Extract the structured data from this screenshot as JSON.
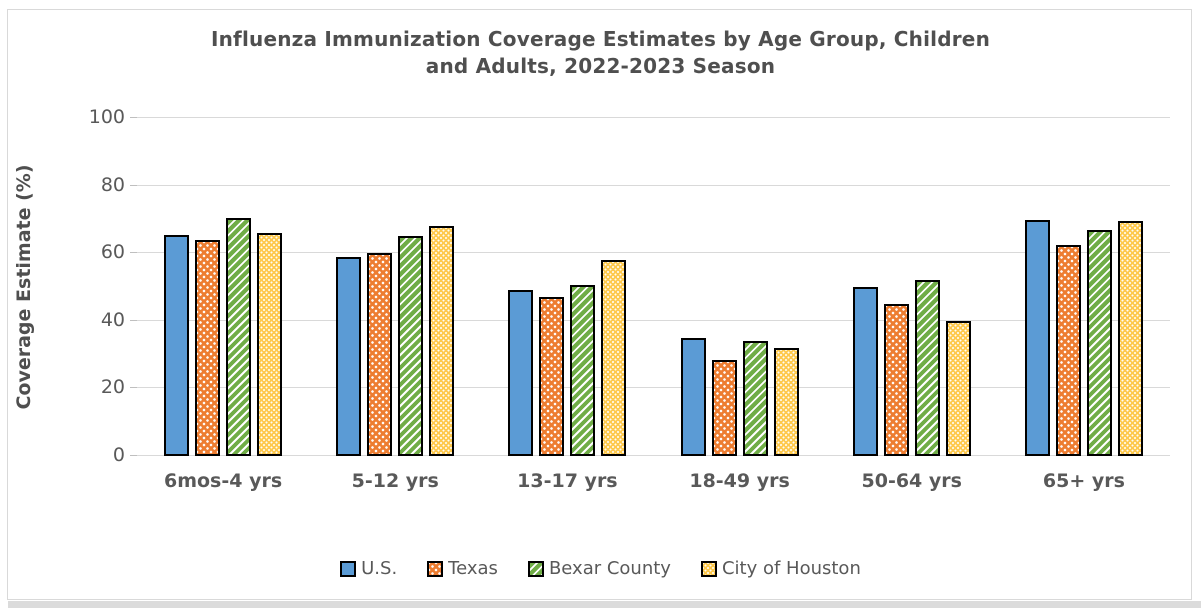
{
  "title": {
    "line1": "Influenza Immunization Coverage Estimates by Age Group, Children",
    "line2": "and Adults, 2022-2023 Season"
  },
  "y_axis": {
    "label": "Coverage Estimate (%)",
    "ticks": [
      0,
      20,
      40,
      60,
      80,
      100
    ]
  },
  "legend": {
    "labels": [
      "U.S.",
      "Texas",
      "Bexar County",
      "City of Houston"
    ]
  },
  "scrollbar": {
    "name": "horizontal-scrollbar"
  },
  "chart_data": {
    "type": "bar",
    "title": "Influenza Immunization Coverage Estimates by Age Group, Children and Adults, 2022-2023 Season",
    "xlabel": "",
    "ylabel": "Coverage Estimate (%)",
    "ylim": [
      0,
      100
    ],
    "gridlines": [
      0,
      20,
      40,
      60,
      80,
      100
    ],
    "grid": "on",
    "legend_position": "bottom",
    "categories": [
      "6mos-4 yrs",
      "5-12 yrs",
      "13-17 yrs",
      "18-49 yrs",
      "50-64 yrs",
      "65+ yrs"
    ],
    "series": [
      {
        "name": "U.S.",
        "color": "#5b9bd5",
        "pattern": "solid",
        "values": [
          65.5,
          59,
          49,
          35,
          50,
          69.7
        ]
      },
      {
        "name": "Texas",
        "color": "#ed7d31",
        "pattern": "white-dots",
        "values": [
          64,
          60,
          47,
          28.5,
          45,
          62.5
        ]
      },
      {
        "name": "Bexar County",
        "color": "#70ad47",
        "pattern": "diagonal-stripes",
        "values": [
          70.5,
          65,
          50.5,
          34,
          52,
          67
        ]
      },
      {
        "name": "City of Houston",
        "color": "#fec94d",
        "pattern": "fine-white-dots",
        "values": [
          66,
          68,
          58,
          32,
          40,
          69.5
        ]
      }
    ]
  }
}
